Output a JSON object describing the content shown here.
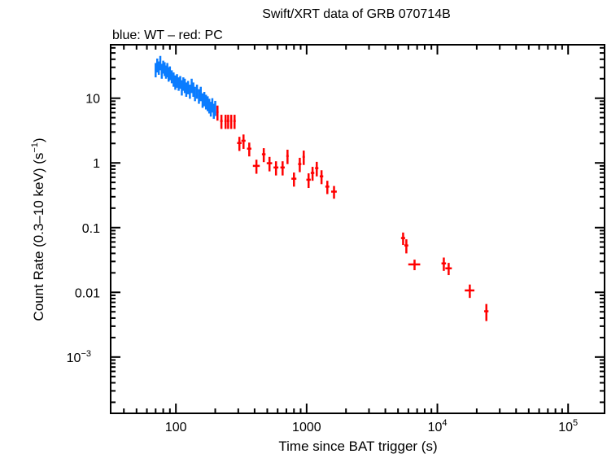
{
  "chart_data": {
    "type": "scatter",
    "title": "Swift/XRT data of GRB 070714B",
    "subtitle": "blue: WT – red: PC",
    "xlabel": "Time since BAT trigger (s)",
    "ylabel": "Count Rate (0.3–10 keV) (s",
    "ylabel_sup": "−1",
    "ylabel_end": ")",
    "xscale": "log",
    "yscale": "log",
    "xlim": [
      31.7,
      190000
    ],
    "ylim": [
      0.000135,
      67
    ],
    "grid": false,
    "x_ticks": [
      {
        "value": 100,
        "label": "100"
      },
      {
        "value": 1000,
        "label": "1000"
      },
      {
        "value": 10000,
        "label": "10",
        "sup": "4"
      },
      {
        "value": 100000,
        "label": "10",
        "sup": "5"
      }
    ],
    "y_ticks": [
      {
        "value": 10,
        "label": "10"
      },
      {
        "value": 1,
        "label": "1"
      },
      {
        "value": 0.1,
        "label": "0.1"
      },
      {
        "value": 0.01,
        "label": "0.01"
      },
      {
        "value": 0.001,
        "label": "10",
        "sup": "−3"
      }
    ],
    "series": [
      {
        "name": "WT",
        "color": "#0a7cff",
        "points": [
          [
            70,
            28,
            1,
            7
          ],
          [
            72,
            33,
            1,
            8
          ],
          [
            74,
            30,
            1,
            7
          ],
          [
            76,
            36,
            1,
            9
          ],
          [
            78,
            27,
            1,
            7
          ],
          [
            80,
            31,
            1,
            7
          ],
          [
            82,
            29,
            1,
            7
          ],
          [
            84,
            26,
            1,
            6
          ],
          [
            86,
            28,
            1,
            7
          ],
          [
            88,
            24,
            1,
            6
          ],
          [
            90,
            25,
            1,
            6
          ],
          [
            93,
            22,
            1.5,
            5
          ],
          [
            96,
            20,
            1.5,
            5
          ],
          [
            99,
            18,
            1.5,
            4.5
          ],
          [
            102,
            19,
            1.5,
            4.5
          ],
          [
            105,
            17,
            1.5,
            4
          ],
          [
            108,
            18,
            1.5,
            4
          ],
          [
            111,
            15,
            1.5,
            4
          ],
          [
            114,
            17,
            1.5,
            4
          ],
          [
            117,
            16,
            1.5,
            4
          ],
          [
            120,
            14,
            2,
            3.5
          ],
          [
            124,
            15,
            2,
            3.5
          ],
          [
            128,
            13,
            2,
            3.2
          ],
          [
            132,
            16,
            2,
            4
          ],
          [
            136,
            14,
            2,
            3.5
          ],
          [
            140,
            12,
            2,
            3
          ],
          [
            145,
            13,
            2.5,
            3.2
          ],
          [
            150,
            11,
            2.5,
            2.8
          ],
          [
            155,
            12,
            2.5,
            3
          ],
          [
            160,
            9.5,
            2.5,
            2.4
          ],
          [
            165,
            10,
            2.5,
            2.5
          ],
          [
            170,
            9,
            2.5,
            2.3
          ],
          [
            175,
            8.5,
            2.5,
            2.2
          ],
          [
            180,
            7.8,
            3,
            2
          ],
          [
            185,
            7,
            3,
            1.8
          ],
          [
            190,
            8,
            3,
            2
          ],
          [
            195,
            6.5,
            3,
            1.7
          ],
          [
            200,
            7.2,
            3,
            1.9
          ]
        ]
      },
      {
        "name": "PC",
        "color": "#ff0000",
        "points": [
          [
            208,
            6.1,
            4,
            1.6
          ],
          [
            223,
            4.45,
            5,
            1.1
          ],
          [
            240,
            4.45,
            5,
            1.1
          ],
          [
            251,
            4.45,
            5,
            1.1
          ],
          [
            265,
            4.45,
            5,
            1.1
          ],
          [
            281,
            4.45,
            6,
            1.1
          ],
          [
            306,
            2.03,
            12,
            0.5
          ],
          [
            329,
            2.2,
            12,
            0.55
          ],
          [
            364,
            1.66,
            14,
            0.4
          ],
          [
            413,
            0.9,
            25,
            0.22
          ],
          [
            470,
            1.36,
            15,
            0.33
          ],
          [
            520,
            0.99,
            25,
            0.25
          ],
          [
            583,
            0.85,
            25,
            0.21
          ],
          [
            655,
            0.85,
            25,
            0.21
          ],
          [
            714,
            1.28,
            15,
            0.32
          ],
          [
            800,
            0.57,
            35,
            0.14
          ],
          [
            886,
            0.96,
            25,
            0.24
          ],
          [
            950,
            1.24,
            20,
            0.31
          ],
          [
            1035,
            0.55,
            40,
            0.14
          ],
          [
            1110,
            0.7,
            35,
            0.17
          ],
          [
            1195,
            0.83,
            35,
            0.21
          ],
          [
            1300,
            0.62,
            40,
            0.15
          ],
          [
            1440,
            0.43,
            50,
            0.1
          ],
          [
            1620,
            0.36,
            80,
            0.08
          ],
          [
            5470,
            0.069,
            200,
            0.015
          ],
          [
            5790,
            0.053,
            200,
            0.013
          ],
          [
            6690,
            0.027,
            700,
            0.005
          ],
          [
            11200,
            0.028,
            450,
            0.0065
          ],
          [
            12200,
            0.0235,
            700,
            0.005
          ],
          [
            17700,
            0.0107,
            1500,
            0.0025
          ],
          [
            23700,
            0.0051,
            900,
            0.0015
          ]
        ]
      }
    ]
  }
}
